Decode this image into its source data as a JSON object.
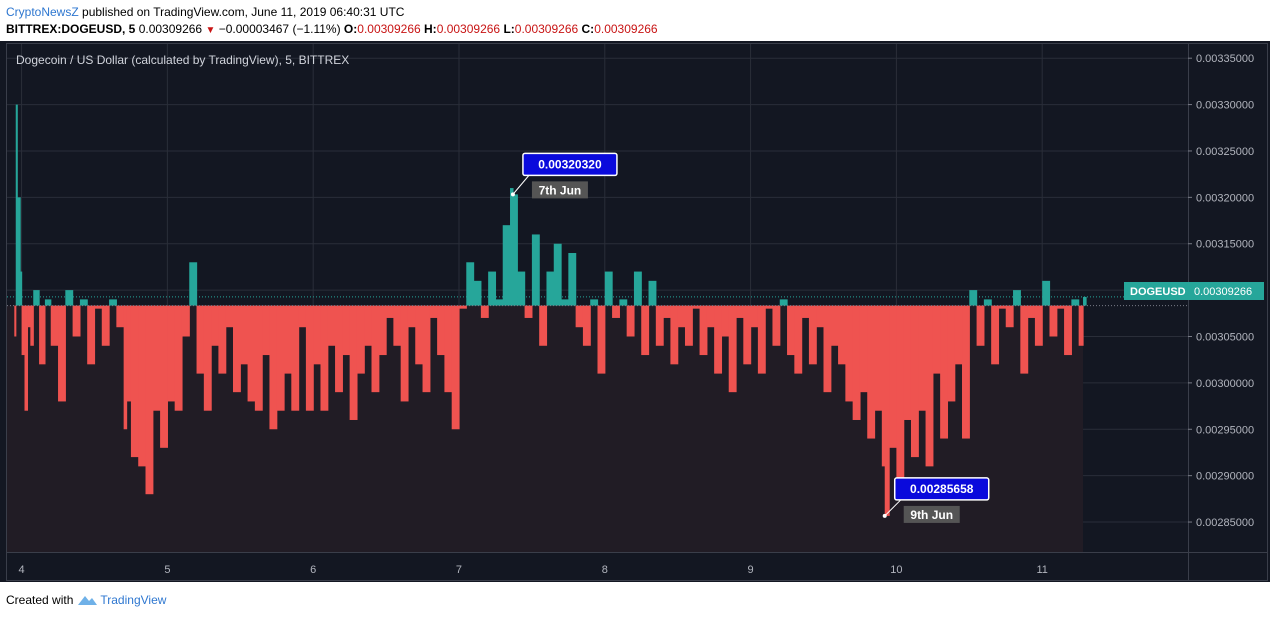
{
  "header": {
    "author": "CryptoNewsZ",
    "published_text": " published on TradingView.com, June 11, 2019 06:40:31 UTC",
    "symbol": "BITTREX:DOGEUSD, 5",
    "last": "0.00309266",
    "change": "−0.00003467 (−1.11%)",
    "o_label": "O:",
    "o_value": "0.00309266",
    "h_label": "H:",
    "h_value": "0.00309266",
    "l_label": "L:",
    "l_value": "0.00309266",
    "c_label": "C:",
    "c_value": "0.00309266"
  },
  "footer": {
    "created_with": "Created with",
    "brand": "TradingView",
    "logo_icon": "tradingview-cloud-icon"
  },
  "colors": {
    "background": "#131722",
    "up": "#26a69a",
    "down": "#ef5350",
    "callout": "#0a0adc",
    "date_tag": "#555555"
  },
  "chart_data": {
    "type": "area",
    "title": "Dogecoin / US Dollar (calculated by TradingView), 5, BITTREX",
    "baseline": 0.00308333,
    "x_ticks": [
      "4",
      "5",
      "6",
      "7",
      "8",
      "9",
      "10",
      "11"
    ],
    "y_ticks": [
      "0.00285000",
      "0.00290000",
      "0.00295000",
      "0.00300000",
      "0.00305000",
      "0.00310000",
      "0.00315000",
      "0.00320000",
      "0.00325000",
      "0.00330000",
      "0.00335000"
    ],
    "ylim": [
      0.0028177,
      0.0033653
    ],
    "xlim": [
      3.9,
      12.0
    ],
    "grid": true,
    "current_label": "DOGEUSD",
    "current_value": "0.00309266",
    "current_price": 0.00309266,
    "callouts": [
      {
        "value": "0.00320320",
        "date": "7th Jun",
        "x": 7.37,
        "y": 0.0032032
      },
      {
        "value": "0.00285658",
        "date": "9th Jun",
        "x": 9.92,
        "y": 0.00285658
      }
    ],
    "series": [
      {
        "x": [
          3.95,
          3.96,
          3.97,
          3.99,
          4.0,
          4.02,
          4.04,
          4.06,
          4.08,
          4.12,
          4.16,
          4.2,
          4.25,
          4.3,
          4.35,
          4.4,
          4.45,
          4.5,
          4.55,
          4.6,
          4.65,
          4.7,
          4.72,
          4.75,
          4.8,
          4.85,
          4.9,
          4.95,
          5.0,
          5.05,
          5.1,
          5.15,
          5.2,
          5.25,
          5.3,
          5.35,
          5.4,
          5.45,
          5.5,
          5.55,
          5.6,
          5.65,
          5.7,
          5.75,
          5.8,
          5.85,
          5.9,
          5.95,
          6.0,
          6.05,
          6.1,
          6.15,
          6.2,
          6.25,
          6.3,
          6.35,
          6.4,
          6.45,
          6.5,
          6.55,
          6.6,
          6.65,
          6.7,
          6.75,
          6.8,
          6.85,
          6.9,
          6.95,
          7.0,
          7.05,
          7.1,
          7.15,
          7.2,
          7.25,
          7.3,
          7.35,
          7.37,
          7.4,
          7.45,
          7.5,
          7.55,
          7.6,
          7.65,
          7.7,
          7.75,
          7.8,
          7.85,
          7.9,
          7.95,
          8.0,
          8.05,
          8.1,
          8.15,
          8.2,
          8.25,
          8.3,
          8.35,
          8.4,
          8.45,
          8.5,
          8.55,
          8.6,
          8.65,
          8.7,
          8.75,
          8.8,
          8.85,
          8.9,
          8.95,
          9.0,
          9.05,
          9.1,
          9.15,
          9.2,
          9.25,
          9.3,
          9.35,
          9.4,
          9.45,
          9.5,
          9.55,
          9.6,
          9.65,
          9.7,
          9.75,
          9.8,
          9.85,
          9.9,
          9.92,
          9.95,
          10.0,
          10.05,
          10.1,
          10.15,
          10.2,
          10.25,
          10.3,
          10.35,
          10.4,
          10.45,
          10.5,
          10.55,
          10.6,
          10.65,
          10.7,
          10.75,
          10.8,
          10.85,
          10.9,
          10.95,
          11.0,
          11.05,
          11.1,
          11.15,
          11.2,
          11.25,
          11.28
        ],
        "y": [
          0.00305,
          0.0033,
          0.0032,
          0.00312,
          0.00303,
          0.00297,
          0.00306,
          0.00304,
          0.0031,
          0.00302,
          0.00309,
          0.00304,
          0.00298,
          0.0031,
          0.00305,
          0.00309,
          0.00302,
          0.00308,
          0.00304,
          0.00309,
          0.00306,
          0.00295,
          0.00298,
          0.00292,
          0.00291,
          0.00288,
          0.00297,
          0.00293,
          0.00298,
          0.00297,
          0.00305,
          0.00313,
          0.00301,
          0.00297,
          0.00304,
          0.00301,
          0.00306,
          0.00299,
          0.00302,
          0.00298,
          0.00297,
          0.00303,
          0.00295,
          0.00297,
          0.00301,
          0.00297,
          0.00306,
          0.00297,
          0.00302,
          0.00297,
          0.00304,
          0.00299,
          0.00303,
          0.00296,
          0.00301,
          0.00304,
          0.00299,
          0.00303,
          0.00307,
          0.00304,
          0.00298,
          0.00306,
          0.00302,
          0.00299,
          0.00307,
          0.00303,
          0.00299,
          0.00295,
          0.00308,
          0.00313,
          0.00311,
          0.00307,
          0.00312,
          0.00309,
          0.00317,
          0.00321,
          0.0032032,
          0.00312,
          0.00307,
          0.00316,
          0.00304,
          0.00312,
          0.00315,
          0.00309,
          0.00314,
          0.00306,
          0.00304,
          0.00309,
          0.00301,
          0.00312,
          0.00307,
          0.00309,
          0.00305,
          0.00312,
          0.00303,
          0.00311,
          0.00304,
          0.00307,
          0.00302,
          0.00306,
          0.00304,
          0.00308,
          0.00303,
          0.00306,
          0.00301,
          0.00305,
          0.00299,
          0.00307,
          0.00302,
          0.00306,
          0.00301,
          0.00308,
          0.00304,
          0.00309,
          0.00303,
          0.00301,
          0.00307,
          0.00302,
          0.00306,
          0.00299,
          0.00304,
          0.00302,
          0.00298,
          0.00296,
          0.00299,
          0.00294,
          0.00297,
          0.00291,
          0.0028566,
          0.00293,
          0.00289,
          0.00296,
          0.00292,
          0.00297,
          0.00291,
          0.00301,
          0.00294,
          0.00298,
          0.00302,
          0.00294,
          0.0031,
          0.00304,
          0.00309,
          0.00302,
          0.00308,
          0.00306,
          0.0031,
          0.00301,
          0.00307,
          0.00304,
          0.00311,
          0.00305,
          0.00308,
          0.00303,
          0.00309,
          0.00304,
          0.00309266
        ]
      }
    ]
  }
}
